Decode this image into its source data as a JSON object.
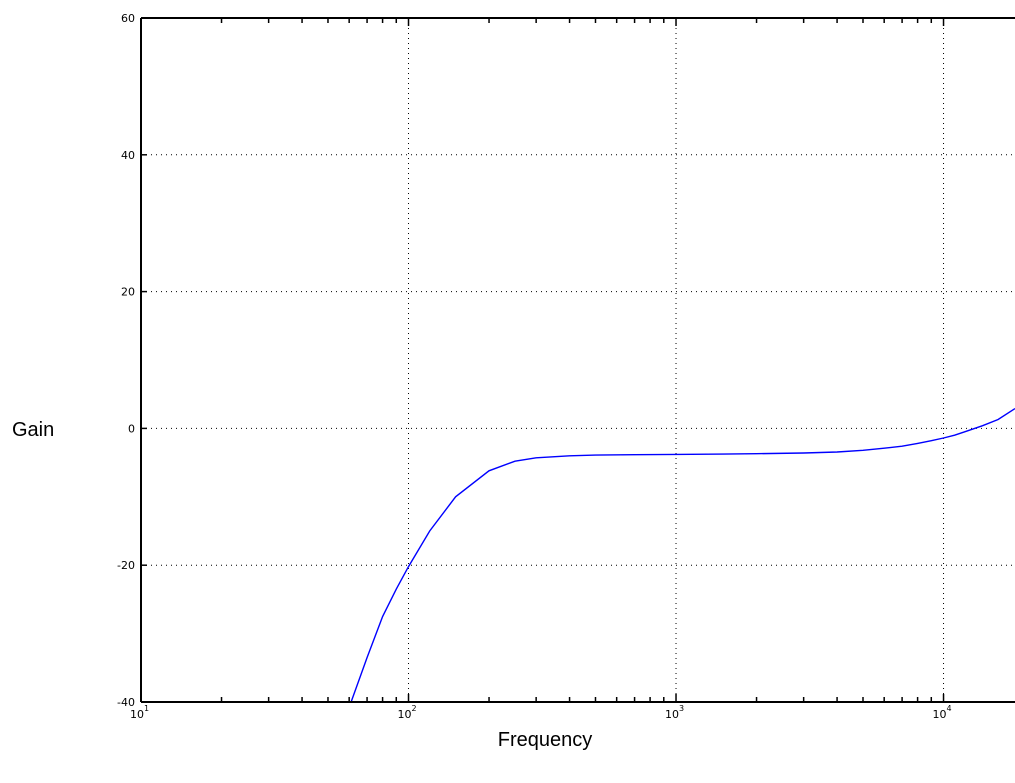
{
  "chart_data": {
    "type": "line",
    "title": "",
    "xlabel": "Frequency",
    "ylabel": "Gain",
    "x_scale": "log",
    "xlim": [
      10,
      18500
    ],
    "ylim": [
      -40,
      60
    ],
    "grid": true,
    "x_ticks": [
      {
        "value": 10,
        "base": "10",
        "exp": "1"
      },
      {
        "value": 100,
        "base": "10",
        "exp": "2"
      },
      {
        "value": 1000,
        "base": "10",
        "exp": "3"
      },
      {
        "value": 10000,
        "base": "10",
        "exp": "4"
      }
    ],
    "y_ticks": [
      {
        "value": 60,
        "label": "60"
      },
      {
        "value": 40,
        "label": "40"
      },
      {
        "value": 20,
        "label": "20"
      },
      {
        "value": 0,
        "label": "0"
      },
      {
        "value": -20,
        "label": "-20"
      },
      {
        "value": -40,
        "label": "-40"
      }
    ],
    "series": [
      {
        "color": "#0000ff",
        "x": [
          61,
          70,
          80,
          90,
          100,
          120,
          150,
          200,
          250,
          300,
          400,
          500,
          700,
          1000,
          1500,
          2000,
          3000,
          4000,
          5000,
          6000,
          7000,
          8000,
          9000,
          10000,
          11000,
          12000,
          14000,
          16000,
          18500
        ],
        "y": [
          -40,
          -33.5,
          -27.5,
          -23.5,
          -20.2,
          -15,
          -10,
          -6.2,
          -4.8,
          -4.3,
          -4.0,
          -3.9,
          -3.85,
          -3.8,
          -3.75,
          -3.7,
          -3.6,
          -3.45,
          -3.2,
          -2.9,
          -2.6,
          -2.2,
          -1.8,
          -1.4,
          -1.0,
          -0.5,
          0.4,
          1.3,
          2.9
        ]
      }
    ]
  }
}
